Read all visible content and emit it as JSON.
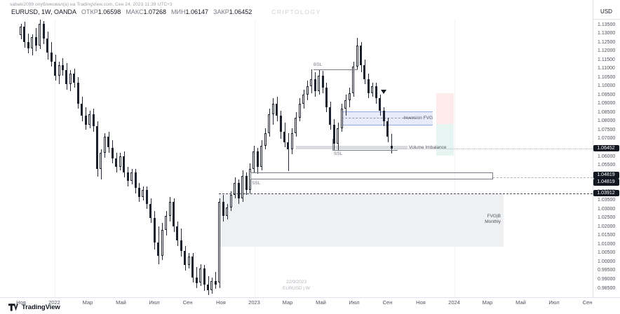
{
  "header": {
    "watermark": "sabaki2099 опубликовал(а) на TradingView.com, Сен 24, 2023 11:39 UTC+3",
    "symbol_line": "EURUSD, 1W, OANDA",
    "ohlc": [
      {
        "label": "ОТКР",
        "value": "1.06598"
      },
      {
        "label": "МАКС",
        "value": "1.07268"
      },
      {
        "label": "МИН",
        "value": "1.06147"
      },
      {
        "label": "ЗАКР",
        "value": "1.06452"
      }
    ]
  },
  "watermarks": {
    "center": "CRIPTOLOGY",
    "bottom_date": "22/9/2023",
    "bottom_symbol": "EURUSD | W"
  },
  "axis": {
    "currency": "USD",
    "price_ticks": [
      "1.13500",
      "1.13000",
      "1.12500",
      "1.12000",
      "1.11500",
      "1.11000",
      "1.10500",
      "1.10000",
      "1.09500",
      "1.09000",
      "1.08500",
      "1.08000",
      "1.07500",
      "1.07000",
      "1.06500",
      "1.06000",
      "1.05500",
      "1.05000",
      "1.04500",
      "1.04000",
      "1.03500",
      "1.03000",
      "1.02500",
      "1.02000",
      "1.01500",
      "1.01000",
      "1.00500",
      "1.00000",
      "0.99500",
      "0.99000",
      "0.98500"
    ],
    "time_ticks": [
      "Ноя",
      "2022",
      "Мар",
      "Май",
      "Июл",
      "Сен",
      "Ноя",
      "2023",
      "Мар",
      "Май",
      "Июл",
      "Сен",
      "Ноя",
      "2024",
      "Мар",
      "Май",
      "Июл",
      "Сен"
    ]
  },
  "badges": {
    "last_price": "1.06452",
    "line_a": "1.04819",
    "line_b": "1.04819",
    "line_c": "1.03912"
  },
  "annotations": {
    "bsl": "BSL",
    "ssl_mid": "SSL",
    "ssl_major": "SSL",
    "inversion_fvg": "Inversion FVG",
    "volume_imbalance": "Volume Imbalance",
    "fvg_monthly_line1": "FVG|B",
    "fvg_monthly_line2": "Monthly"
  },
  "footer": {
    "brand": "TradingView"
  },
  "colors": {
    "up_body": "#ffffff",
    "down_body": "#1b202c",
    "candle_outline": "#232734",
    "badge_bg": "#131722",
    "badge_text": "#ffffff",
    "fvg_blue_fill": "rgba(63,102,215,0.12)",
    "fvg_blue_border": "rgba(63,102,215,0.50)",
    "box_red": "rgba(242,54,69,0.10)",
    "box_green": "rgba(8,153,129,0.10)",
    "gray_band": "rgba(149,152,161,0.35)",
    "gray_box": "#eef0f2",
    "axis_line": "#e0e3eb",
    "drawing_line": "#787b86"
  },
  "chart_data": {
    "type": "candlestick",
    "symbol": "EURUSD",
    "timeframe": "1W",
    "last_bar": {
      "open": 1.06598,
      "high": 1.07268,
      "low": 1.06147,
      "close": 1.06452
    },
    "price_axis_range": {
      "top": 1.1385,
      "bottom": 0.9795
    },
    "price_levels": {
      "ssl_major": 1.04819,
      "ssl_major_dup": 1.04819,
      "lower_line": 1.03912,
      "bsl": 1.1095,
      "ssl_mid": 1.0636
    },
    "candles": [
      [
        1.129,
        1.1355,
        1.1265,
        1.134
      ],
      [
        1.134,
        1.1368,
        1.122,
        1.125
      ],
      [
        1.125,
        1.13,
        1.1185,
        1.1215
      ],
      [
        1.1215,
        1.1295,
        1.1175,
        1.128
      ],
      [
        1.128,
        1.133,
        1.12,
        1.123
      ],
      [
        1.123,
        1.1378,
        1.121,
        1.1355
      ],
      [
        1.1355,
        1.137,
        1.124,
        1.127
      ],
      [
        1.127,
        1.131,
        1.115,
        1.119
      ],
      [
        1.119,
        1.125,
        1.111,
        1.114
      ],
      [
        1.114,
        1.118,
        1.103,
        1.106
      ],
      [
        1.106,
        1.114,
        1.101,
        1.112
      ],
      [
        1.112,
        1.116,
        1.106,
        1.109
      ],
      [
        1.109,
        1.113,
        1.098,
        1.101
      ],
      [
        1.101,
        1.109,
        1.097,
        1.107
      ],
      [
        1.107,
        1.11,
        1.099,
        1.102
      ],
      [
        1.102,
        1.105,
        1.087,
        1.09
      ],
      [
        1.09,
        1.094,
        1.08,
        1.083
      ],
      [
        1.083,
        1.088,
        1.075,
        1.078
      ],
      [
        1.078,
        1.086,
        1.076,
        1.084
      ],
      [
        1.084,
        1.087,
        1.074,
        1.077
      ],
      [
        1.077,
        1.08,
        1.0485,
        1.053
      ],
      [
        1.053,
        1.064,
        1.047,
        1.062
      ],
      [
        1.062,
        1.073,
        1.059,
        1.071
      ],
      [
        1.071,
        1.074,
        1.062,
        1.065
      ],
      [
        1.065,
        1.069,
        1.056,
        1.059
      ],
      [
        1.059,
        1.062,
        1.051,
        1.054
      ],
      [
        1.054,
        1.062,
        1.052,
        1.06
      ],
      [
        1.06,
        1.063,
        1.048,
        1.051
      ],
      [
        1.051,
        1.054,
        1.043,
        1.046
      ],
      [
        1.046,
        1.053,
        1.044,
        1.051
      ],
      [
        1.051,
        1.053,
        1.039,
        1.042
      ],
      [
        1.042,
        1.045,
        1.034,
        1.037
      ],
      [
        1.037,
        1.043,
        1.035,
        1.041
      ],
      [
        1.041,
        1.043,
        1.03,
        1.033
      ],
      [
        1.033,
        1.036,
        1.022,
        1.025
      ],
      [
        1.025,
        1.029,
        1.007,
        1.011
      ],
      [
        1.011,
        1.02,
        0.9985,
        1.0035
      ],
      [
        1.0035,
        1.022,
        1.001,
        1.018
      ],
      [
        1.018,
        1.029,
        1.015,
        1.026
      ],
      [
        1.026,
        1.037,
        1.023,
        1.034
      ],
      [
        1.034,
        1.036,
        1.017,
        1.02
      ],
      [
        1.02,
        1.023,
        1.009,
        1.012
      ],
      [
        1.012,
        1.019,
        1.003,
        1.006
      ],
      [
        1.006,
        1.009,
        0.995,
        0.998
      ],
      [
        0.998,
        1.005,
        0.996,
        1.003
      ],
      [
        1.003,
        1.005,
        0.988,
        0.991
      ],
      [
        0.991,
        0.997,
        0.985,
        0.988
      ],
      [
        0.988,
        0.9985,
        0.986,
        0.996
      ],
      [
        0.996,
        0.998,
        0.9835,
        0.987
      ],
      [
        0.987,
        0.992,
        0.981,
        0.984
      ],
      [
        0.984,
        0.991,
        0.982,
        0.989
      ],
      [
        0.989,
        0.994,
        0.9845,
        0.987
      ],
      [
        0.988,
        1.036,
        0.985,
        1.034
      ],
      [
        1.034,
        1.038,
        1.023,
        1.026
      ],
      [
        1.026,
        1.033,
        1.024,
        1.031
      ],
      [
        1.031,
        1.04,
        1.029,
        1.038
      ],
      [
        1.038,
        1.048,
        1.036,
        1.045
      ],
      [
        1.045,
        1.047,
        1.033,
        1.036
      ],
      [
        1.036,
        1.052,
        1.034,
        1.049
      ],
      [
        1.049,
        1.051,
        1.038,
        1.041
      ],
      [
        1.041,
        1.056,
        1.039,
        1.053
      ],
      [
        1.053,
        1.066,
        1.051,
        1.063
      ],
      [
        1.063,
        1.065,
        1.05,
        1.054
      ],
      [
        1.054,
        1.069,
        1.052,
        1.066
      ],
      [
        1.066,
        1.076,
        1.064,
        1.073
      ],
      [
        1.073,
        1.087,
        1.071,
        1.084
      ],
      [
        1.084,
        1.093,
        1.078,
        1.09
      ],
      [
        1.09,
        1.094,
        1.08,
        1.083
      ],
      [
        1.083,
        1.086,
        1.07,
        1.074
      ],
      [
        1.074,
        1.079,
        1.065,
        1.068
      ],
      [
        1.068,
        1.073,
        1.0516,
        1.064
      ],
      [
        1.064,
        1.076,
        1.061,
        1.073
      ],
      [
        1.073,
        1.085,
        1.071,
        1.082
      ],
      [
        1.082,
        1.093,
        1.08,
        1.09
      ],
      [
        1.09,
        1.098,
        1.087,
        1.095
      ],
      [
        1.095,
        1.103,
        1.092,
        1.1
      ],
      [
        1.1,
        1.1095,
        1.096,
        1.104
      ],
      [
        1.104,
        1.108,
        1.094,
        1.097
      ],
      [
        1.097,
        1.109,
        1.095,
        1.106
      ],
      [
        1.106,
        1.1085,
        1.096,
        1.099
      ],
      [
        1.099,
        1.102,
        1.085,
        1.088
      ],
      [
        1.088,
        1.091,
        1.075,
        1.078
      ],
      [
        1.078,
        1.081,
        1.0636,
        1.067
      ],
      [
        1.067,
        1.079,
        1.0635,
        1.076
      ],
      [
        1.076,
        1.09,
        1.074,
        1.087
      ],
      [
        1.087,
        1.095,
        1.083,
        1.092
      ],
      [
        1.092,
        1.099,
        1.088,
        1.096
      ],
      [
        1.096,
        1.114,
        1.094,
        1.111
      ],
      [
        1.111,
        1.1276,
        1.109,
        1.123
      ],
      [
        1.123,
        1.125,
        1.108,
        1.112
      ],
      [
        1.112,
        1.115,
        1.101,
        1.104
      ],
      [
        1.104,
        1.107,
        1.093,
        1.096
      ],
      [
        1.096,
        1.102,
        1.094,
        1.1
      ],
      [
        1.1,
        1.102,
        1.09,
        1.093
      ],
      [
        1.093,
        1.095,
        1.083,
        1.086
      ],
      [
        1.086,
        1.088,
        1.077,
        1.08
      ],
      [
        1.08,
        1.082,
        1.068,
        1.071
      ],
      [
        1.06598,
        1.07268,
        1.06147,
        1.06452
      ]
    ]
  }
}
